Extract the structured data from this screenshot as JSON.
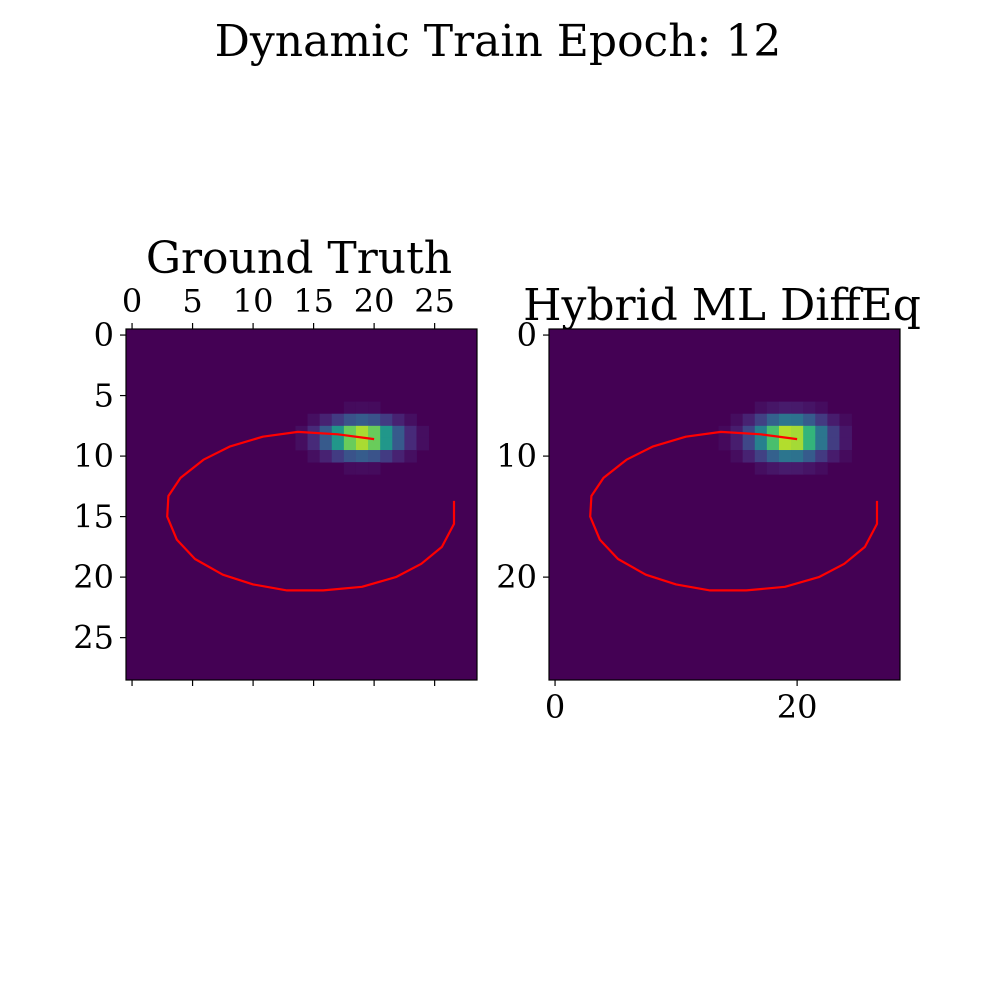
{
  "figure": {
    "title": "Dynamic Train Epoch: 12"
  },
  "chart_data": [
    {
      "type": "heatmap",
      "title": "Ground Truth",
      "grid_size": 29,
      "colormap": "viridis",
      "blob": {
        "center_x": 19,
        "center_y": 8.5,
        "sigma_x": 2.0,
        "sigma_y": 0.95
      },
      "x_axis": {
        "position": "top",
        "ticks": [
          0,
          5,
          10,
          15,
          20,
          25
        ],
        "tick_labels": [
          "0",
          "5",
          "10",
          "15",
          "20",
          "25"
        ]
      },
      "y_axis": {
        "ticks": [
          0,
          5,
          10,
          15,
          20,
          25
        ],
        "tick_labels": [
          "0",
          "5",
          "10",
          "15",
          "20",
          "25"
        ]
      },
      "trajectory": {
        "color": "#ff0000",
        "x": [
          26.6,
          26.6,
          25.6,
          23.9,
          21.8,
          19.0,
          15.8,
          12.8,
          10.0,
          7.5,
          5.2,
          3.7,
          2.9,
          3.0,
          4.0,
          5.9,
          8.1,
          10.8,
          13.7,
          17.0,
          20.0
        ],
        "y": [
          13.7,
          15.6,
          17.5,
          18.9,
          20.0,
          20.8,
          21.1,
          21.1,
          20.6,
          19.8,
          18.5,
          16.9,
          15.0,
          13.3,
          11.8,
          10.3,
          9.2,
          8.4,
          8.0,
          8.2,
          8.6
        ]
      }
    },
    {
      "type": "heatmap",
      "title": "Hybrid ML DiffEq",
      "grid_size": 29,
      "colormap": "viridis",
      "blob": {
        "center_x": 19.4,
        "center_y": 8.5,
        "sigma_x": 2.0,
        "sigma_y": 1.1
      },
      "x_axis": {
        "position": "bottom",
        "ticks": [
          0,
          20
        ],
        "tick_labels": [
          "0",
          "20"
        ]
      },
      "y_axis": {
        "ticks": [
          0,
          10,
          20
        ],
        "tick_labels": [
          "0",
          "10",
          "20"
        ]
      },
      "trajectory": {
        "color": "#ff0000",
        "x": [
          26.6,
          26.6,
          25.6,
          23.9,
          21.8,
          19.0,
          15.8,
          12.8,
          10.0,
          7.5,
          5.2,
          3.7,
          2.9,
          3.0,
          4.0,
          5.9,
          8.1,
          10.8,
          13.7,
          17.0,
          20.0
        ],
        "y": [
          13.7,
          15.6,
          17.5,
          18.9,
          20.0,
          20.8,
          21.1,
          21.1,
          20.6,
          19.8,
          18.5,
          16.9,
          15.0,
          13.3,
          11.8,
          10.3,
          9.2,
          8.4,
          8.0,
          8.2,
          8.6
        ]
      }
    }
  ]
}
